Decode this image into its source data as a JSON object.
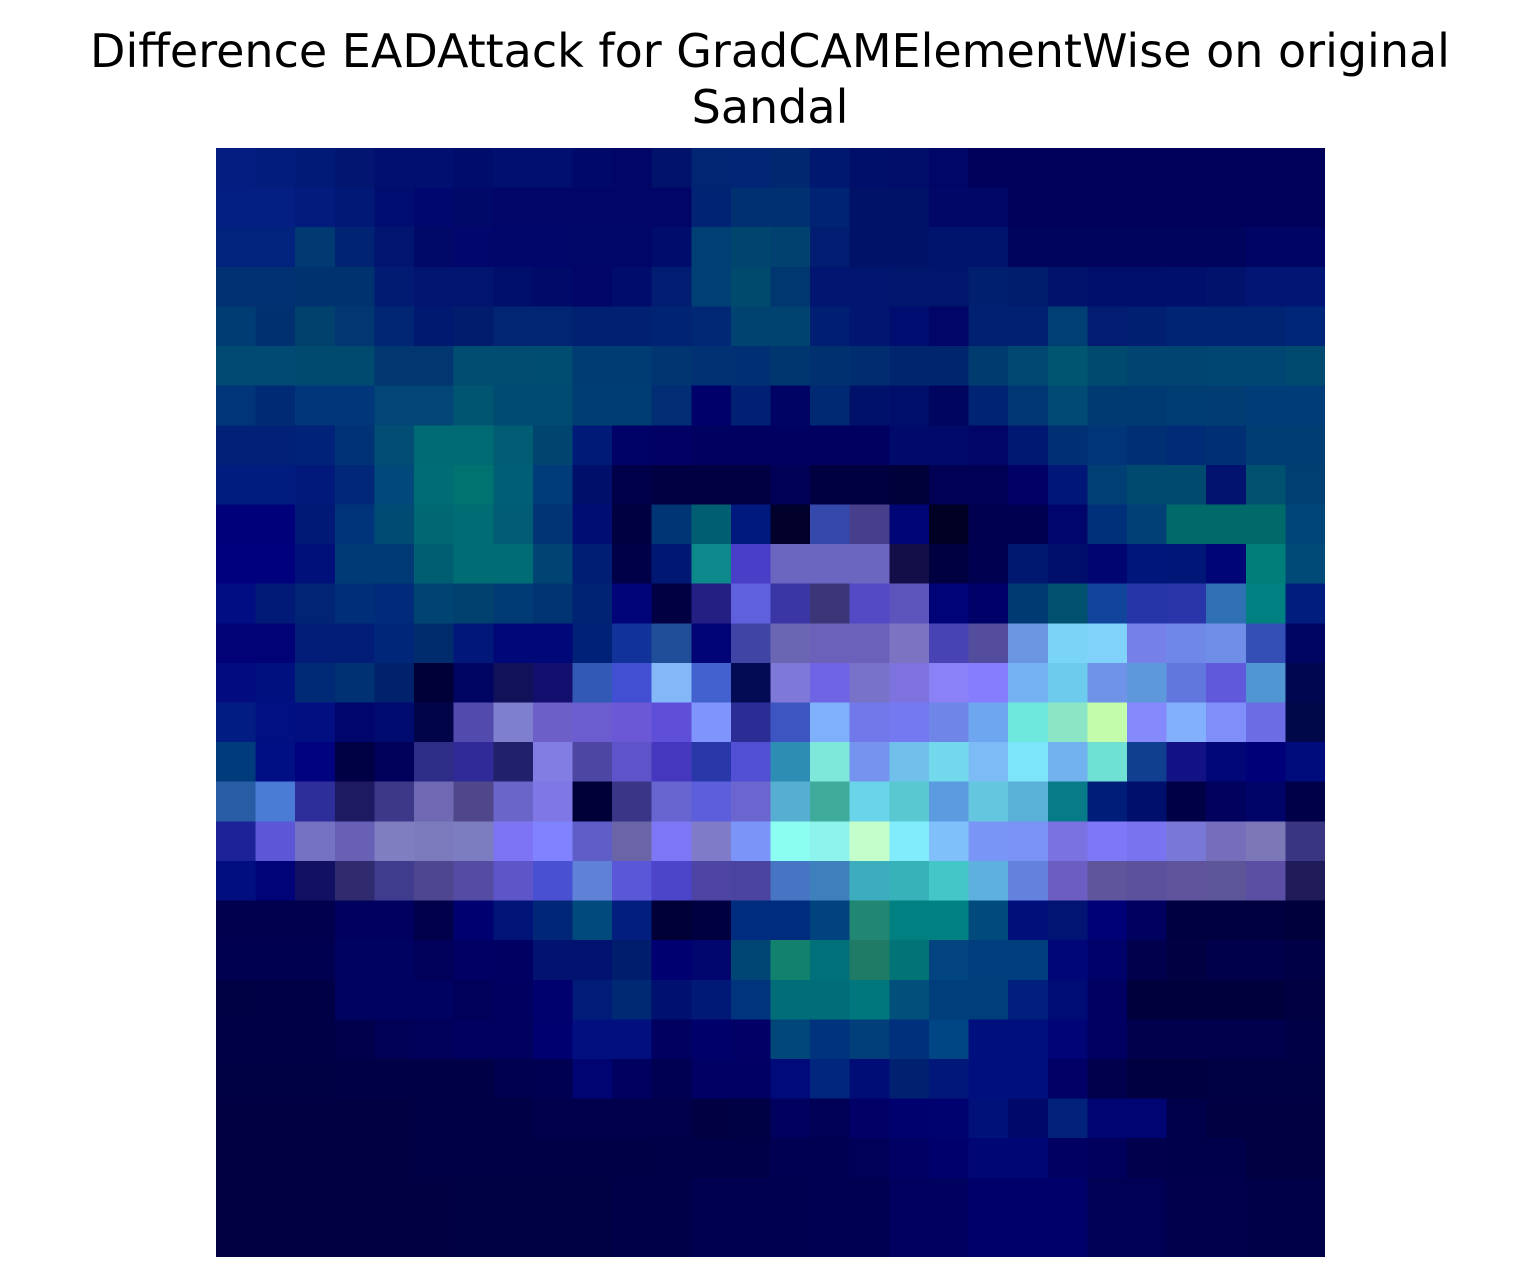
{
  "chart_data": {
    "type": "heatmap",
    "title": "Difference EADAttack for GradCAMElementWise on original",
    "subtitle": "Sandal",
    "axis": "off",
    "grid": false,
    "rows": 28,
    "cols": 28,
    "cells": [
      [
        "#041d80",
        "#021c7c",
        "#011a78",
        "#011571",
        "#010f70",
        "#010f70",
        "#000c6b",
        "#000f70",
        "#000f70",
        "#00096a",
        "#000567",
        "#00126a",
        "#012572",
        "#012574",
        "#002770",
        "#00186f",
        "#000f6a",
        "#000e6a",
        "#000568",
        "#00005b",
        "#00005b",
        "#00005b",
        "#00005b",
        "#00005b",
        "#00005b",
        "#00005b",
        "#00005b",
        "#00005b"
      ],
      [
        "#031f84",
        "#031f84",
        "#021b7c",
        "#021876",
        "#000d70",
        "#000870",
        "#000868",
        "#000567",
        "#000567",
        "#000567",
        "#000567",
        "#000567",
        "#002373",
        "#003071",
        "#003071",
        "#002373",
        "#001168",
        "#001168",
        "#000767",
        "#000767",
        "#00005b",
        "#00005b",
        "#00005b",
        "#00005b",
        "#00005b",
        "#00005b",
        "#00005b",
        "#00005b"
      ],
      [
        "#02237d",
        "#02237d",
        "#013a72",
        "#012373",
        "#001470",
        "#000868",
        "#00066b",
        "#000669",
        "#000669",
        "#000568",
        "#000568",
        "#000c6b",
        "#003f74",
        "#00456d",
        "#004170",
        "#011d71",
        "#001168",
        "#001168",
        "#00146d",
        "#00146d",
        "#00045d",
        "#00045d",
        "#00045d",
        "#00045d",
        "#00045d",
        "#00045d",
        "#000565",
        "#000565"
      ],
      [
        "#013173",
        "#013173",
        "#013270",
        "#013270",
        "#011b73",
        "#011470",
        "#011470",
        "#000e6b",
        "#000a69",
        "#000567",
        "#000c6b",
        "#001d71",
        "#003f74",
        "#004a6e",
        "#003770",
        "#001570",
        "#001570",
        "#00166d",
        "#00166d",
        "#00206f",
        "#001c6c",
        "#001269",
        "#000e6b",
        "#000e6b",
        "#000f6c",
        "#00126c",
        "#011574",
        "#011574"
      ],
      [
        "#003c74",
        "#00306f",
        "#00416e",
        "#013672",
        "#002573",
        "#001970",
        "#011c6c",
        "#012573",
        "#012573",
        "#002072",
        "#002072",
        "#002373",
        "#002874",
        "#004270",
        "#004270",
        "#001e72",
        "#001670",
        "#000d70",
        "#000567",
        "#002072",
        "#002072",
        "#003f74",
        "#011c71",
        "#011f71",
        "#002474",
        "#002474",
        "#002474",
        "#00267a"
      ],
      [
        "#004a74",
        "#004a74",
        "#004a70",
        "#004a70",
        "#013671",
        "#013671",
        "#004d71",
        "#004d71",
        "#004d72",
        "#003c74",
        "#003c74",
        "#003571",
        "#013073",
        "#003073",
        "#00366f",
        "#00306f",
        "#002d70",
        "#00256f",
        "#00256f",
        "#003b70",
        "#004871",
        "#00556f",
        "#004a70",
        "#004471",
        "#004471",
        "#004673",
        "#004673",
        "#00496f"
      ],
      [
        "#003679",
        "#002b74",
        "#01367a",
        "#01367a",
        "#014677",
        "#014677",
        "#005670",
        "#004b72",
        "#004b72",
        "#003d73",
        "#003d73",
        "#002d73",
        "#00006b",
        "#002074",
        "#000264",
        "#002974",
        "#001169",
        "#000e6b",
        "#000660",
        "#002374",
        "#003674",
        "#004a75",
        "#003a72",
        "#003a72",
        "#003d73",
        "#013d73",
        "#003c78",
        "#003c78"
      ],
      [
        "#012178",
        "#012178",
        "#002278",
        "#003375",
        "#014d74",
        "#006a74",
        "#006a74",
        "#005d74",
        "#004570",
        "#001a78",
        "#000267",
        "#000065",
        "#000060",
        "#000060",
        "#000060",
        "#000060",
        "#000060",
        "#000a6a",
        "#000a6a",
        "#000567",
        "#001871",
        "#002f73",
        "#003677",
        "#002f73",
        "#002b77",
        "#003073",
        "#003d73",
        "#003d73"
      ],
      [
        "#011c7f",
        "#011c7f",
        "#01197a",
        "#002778",
        "#00497a",
        "#006c74",
        "#00726f",
        "#005f74",
        "#003c7a",
        "#000f6a",
        "#00004a",
        "#000042",
        "#000042",
        "#000042",
        "#000056",
        "#000040",
        "#000040",
        "#00003a",
        "#000054",
        "#000054",
        "#000067",
        "#011777",
        "#003f74",
        "#004a70",
        "#004a70",
        "#01136e",
        "#00516f",
        "#003f72"
      ],
      [
        "#00017a",
        "#00017a",
        "#001876",
        "#00347a",
        "#004b74",
        "#006873",
        "#006c74",
        "#005d74",
        "#003474",
        "#000e74",
        "#000040",
        "#003575",
        "#005e73",
        "#00197e",
        "#00002a",
        "#3449ab",
        "#473f8b",
        "#000576",
        "#000025",
        "#000050",
        "#000050",
        "#00056b",
        "#00307a",
        "#004076",
        "#006a6b",
        "#006a6b",
        "#006a6b",
        "#004577"
      ],
      [
        "#00007c",
        "#00007c",
        "#00107a",
        "#003a76",
        "#003a76",
        "#005e73",
        "#006d74",
        "#006d74",
        "#004473",
        "#001e73",
        "#000048",
        "#001773",
        "#0d898c",
        "#493ec7",
        "#6b67c0",
        "#6b67c0",
        "#6b67c0",
        "#140e48",
        "#000040",
        "#000050",
        "#001870",
        "#000e6b",
        "#000572",
        "#01167a",
        "#001778",
        "#000576",
        "#007e7a",
        "#004a77"
      ],
      [
        "#010e83",
        "#011a78",
        "#012475",
        "#012e78",
        "#012a7a",
        "#004473",
        "#00416f",
        "#013b76",
        "#013473",
        "#002373",
        "#000478",
        "#000042",
        "#231f83",
        "#5f60dc",
        "#3b36a5",
        "#3b3677",
        "#5349c4",
        "#5e55bc",
        "#000278",
        "#000069",
        "#003a73",
        "#00506f",
        "#11459b",
        "#2436a8",
        "#2935a9",
        "#2f70b5",
        "#008080",
        "#011e7f"
      ],
      [
        "#000275",
        "#000275",
        "#011d78",
        "#011d78",
        "#00267a",
        "#002b6d",
        "#011779",
        "#000777",
        "#000777",
        "#002178",
        "#113298",
        "#214e99",
        "#000475",
        "#3f44a5",
        "#6b66b3",
        "#6b61ba",
        "#6b61ba",
        "#7a74c3",
        "#4743b5",
        "#544c9d",
        "#6b95e0",
        "#7ad4f6",
        "#81d2fa",
        "#7581e8",
        "#6f88e8",
        "#6f8ee8",
        "#3450b7",
        "#000463"
      ],
      [
        "#020b7f",
        "#00107e",
        "#002a76",
        "#003173",
        "#00216b",
        "#000039",
        "#000463",
        "#11115a",
        "#120f6f",
        "#325ab4",
        "#434fd2",
        "#83b7f8",
        "#4260ce",
        "#040b55",
        "#7e79d9",
        "#6f64e3",
        "#7872c8",
        "#7e72df",
        "#8a81f6",
        "#857dfe",
        "#75b2f2",
        "#6dcbed",
        "#6f93e9",
        "#5d98dc",
        "#6277dd",
        "#6059dc",
        "#4f96d2",
        "#000650"
      ],
      [
        "#011d83",
        "#011183",
        "#010f81",
        "#00056b",
        "#000b6f",
        "#000549",
        "#534aae",
        "#7e7fce",
        "#6c5fc8",
        "#6b5dd0",
        "#6b58d7",
        "#5f4ed8",
        "#7f94fc",
        "#2c2c95",
        "#3c55c1",
        "#7fb0fb",
        "#7078ea",
        "#7579f1",
        "#6f86e8",
        "#6ea6f0",
        "#6ee8dd",
        "#8ce6c5",
        "#c3fdac",
        "#8689fb",
        "#82b0fc",
        "#7f8ef8",
        "#6c6ce5",
        "#000849"
      ],
      [
        "#003c7c",
        "#000f84",
        "#00027e",
        "#000045",
        "#00005a",
        "#2d2c87",
        "#2f2a97",
        "#21206a",
        "#817de3",
        "#4d47a3",
        "#5f53ca",
        "#4538be",
        "#2a37a8",
        "#5150d5",
        "#2e8db2",
        "#7ee9db",
        "#7594f0",
        "#70c0eb",
        "#72d9ec",
        "#7dbbf6",
        "#7de5f9",
        "#70b1ee",
        "#6ee0d4",
        "#103f90",
        "#121285",
        "#010777",
        "#000178",
        "#000b7c"
      ],
      [
        "#285ca5",
        "#4a7bd5",
        "#2d2e99",
        "#1e1a62",
        "#3e3888",
        "#6e69b2",
        "#4f4789",
        "#6a66c9",
        "#7f77e6",
        "#000038",
        "#3a3586",
        "#6766d0",
        "#5d5edc",
        "#6b66cf",
        "#56aed3",
        "#3eab9b",
        "#6ad4ea",
        "#5ac8d1",
        "#5b9be0",
        "#65c6e0",
        "#59b1d8",
        "#087b88",
        "#001d7a",
        "#000f6c",
        "#000046",
        "#00025e",
        "#000469",
        "#000048"
      ],
      [
        "#1c2298",
        "#5c57d6",
        "#7672c3",
        "#6860b4",
        "#7e7ec0",
        "#7b7abc",
        "#7c7cc0",
        "#7c74f2",
        "#8083fd",
        "#5f5ec9",
        "#6a65a7",
        "#7d77f6",
        "#7f7bc9",
        "#7b94f8",
        "#8bfef1",
        "#8ef3ec",
        "#c4feca",
        "#80ecfc",
        "#7fc0fb",
        "#7995f5",
        "#7a91f5",
        "#7b72e1",
        "#7e77f6",
        "#7a73ef",
        "#7a78d7",
        "#756fbb",
        "#7c78b8",
        "#3a3581"
      ],
      [
        "#010e7f",
        "#000277",
        "#111063",
        "#2f2b6e",
        "#3f3b8d",
        "#4f4691",
        "#544ca3",
        "#5e55c9",
        "#4a50d2",
        "#5f82d8",
        "#5a57d9",
        "#4c45c9",
        "#4d44a3",
        "#4a44a0",
        "#4874c4",
        "#3e80bc",
        "#3cacbe",
        "#38b2b9",
        "#44c6c7",
        "#5eb1df",
        "#6282dd",
        "#6b5dc1",
        "#5e559c",
        "#5c519c",
        "#5f549c",
        "#5c5699",
        "#5a4fa3",
        "#1f1a58"
      ],
      [
        "#00004e",
        "#00004e",
        "#00004e",
        "#00015f",
        "#00015f",
        "#00004b",
        "#000070",
        "#001377",
        "#002777",
        "#014a7e",
        "#021e7e",
        "#000036",
        "#000040",
        "#002c80",
        "#002c80",
        "#01437e",
        "#218772",
        "#008080",
        "#008080",
        "#004a7c",
        "#000f7a",
        "#011474",
        "#000077",
        "#00005f",
        "#000041",
        "#000041",
        "#000041",
        "#00003c"
      ],
      [
        "#000050",
        "#000050",
        "#000050",
        "#000262",
        "#000262",
        "#00005a",
        "#000064",
        "#000062",
        "#011271",
        "#011271",
        "#001d6d",
        "#000070",
        "#00066e",
        "#004675",
        "#12816d",
        "#00717b",
        "#1f7b65",
        "#027477",
        "#014480",
        "#003d7c",
        "#003d7c",
        "#000677",
        "#000169",
        "#00004d",
        "#000042",
        "#00004a",
        "#00004a",
        "#000046"
      ],
      [
        "#000045",
        "#000046",
        "#000046",
        "#000262",
        "#000262",
        "#000262",
        "#00005a",
        "#000060",
        "#00006e",
        "#011b79",
        "#002973",
        "#001070",
        "#001977",
        "#00347c",
        "#006d79",
        "#006d79",
        "#00767d",
        "#00507b",
        "#003e7b",
        "#003e7b",
        "#011f7c",
        "#000c76",
        "#000063",
        "#00003d",
        "#00003d",
        "#00003d",
        "#00003d",
        "#000042"
      ],
      [
        "#000046",
        "#000046",
        "#000046",
        "#00004c",
        "#000156",
        "#00005b",
        "#00005f",
        "#00005f",
        "#000070",
        "#010f7f",
        "#010f7f",
        "#000060",
        "#00006a",
        "#000067",
        "#004678",
        "#00337d",
        "#003f7a",
        "#002f7b",
        "#004685",
        "#000f7e",
        "#000f7e",
        "#000475",
        "#000063",
        "#00004d",
        "#00004d",
        "#00004d",
        "#00004d",
        "#000046"
      ],
      [
        "#000044",
        "#000044",
        "#000044",
        "#000047",
        "#000047",
        "#000047",
        "#000047",
        "#000050",
        "#000052",
        "#000473",
        "#000060",
        "#000052",
        "#000064",
        "#000064",
        "#000a7a",
        "#00267d",
        "#000d77",
        "#002170",
        "#01187a",
        "#000f7e",
        "#000f7e",
        "#000066",
        "#00004d",
        "#000041",
        "#000041",
        "#000044",
        "#000044",
        "#000044"
      ],
      [
        "#000043",
        "#000043",
        "#000043",
        "#000043",
        "#000043",
        "#000046",
        "#000046",
        "#000046",
        "#00004d",
        "#00004d",
        "#00004d",
        "#00004b",
        "#000042",
        "#000045",
        "#00005f",
        "#000055",
        "#000066",
        "#00016f",
        "#00026f",
        "#01117a",
        "#00096a",
        "#02217a",
        "#000473",
        "#000473",
        "#00004a",
        "#000043",
        "#000043",
        "#000043"
      ],
      [
        "#000042",
        "#000042",
        "#000042",
        "#000042",
        "#000042",
        "#000046",
        "#000046",
        "#000046",
        "#000046",
        "#000046",
        "#000046",
        "#000048",
        "#000049",
        "#000049",
        "#000053",
        "#000053",
        "#000058",
        "#000064",
        "#00006c",
        "#000674",
        "#000674",
        "#000063",
        "#00005c",
        "#00004d",
        "#00004a",
        "#00004a",
        "#000042",
        "#000042"
      ],
      [
        "#000042",
        "#000042",
        "#000042",
        "#000042",
        "#000042",
        "#000042",
        "#000045",
        "#000045",
        "#000045",
        "#000045",
        "#000048",
        "#000048",
        "#000050",
        "#000050",
        "#000050",
        "#000052",
        "#000052",
        "#00005e",
        "#00005e",
        "#00006a",
        "#00006a",
        "#00006a",
        "#000055",
        "#000055",
        "#00004d",
        "#00004d",
        "#000048",
        "#000048"
      ],
      [
        "#000042",
        "#000042",
        "#000042",
        "#000042",
        "#000042",
        "#000042",
        "#000045",
        "#000045",
        "#000045",
        "#000045",
        "#000048",
        "#000048",
        "#000050",
        "#000050",
        "#000050",
        "#000052",
        "#000052",
        "#00005e",
        "#00005e",
        "#00006a",
        "#00006a",
        "#00006a",
        "#000055",
        "#000055",
        "#00004d",
        "#00004d",
        "#000048",
        "#000048"
      ]
    ]
  }
}
